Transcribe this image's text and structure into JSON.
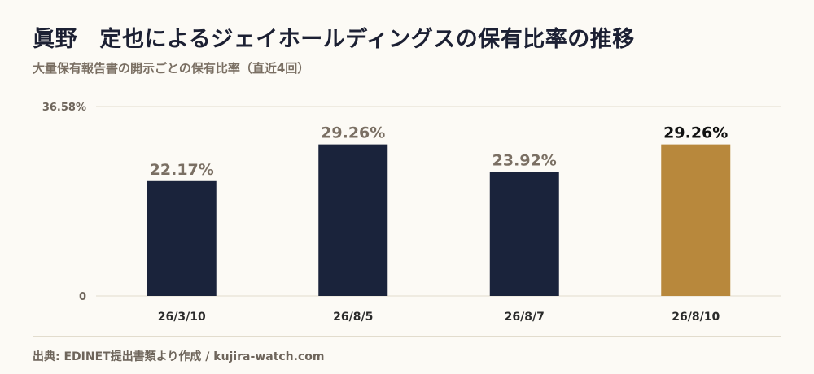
{
  "title": "眞野　定也によるジェイホールディングスの保有比率の推移",
  "subtitle": "大量保有報告書の開示ごとの保有比率（直近4回）",
  "footer": "出典: EDINET提出書類より作成 / kujira-watch.com",
  "colors": {
    "bar": "#1a233b",
    "highlight": "#b8883c",
    "value_label": "#7a6f63",
    "highlight_label": "#111111",
    "axis_text": "#6e655b",
    "grid": "#e2dccd"
  },
  "chart_data": {
    "type": "bar",
    "categories": [
      "26/3/10",
      "26/8/5",
      "26/8/7",
      "26/8/10"
    ],
    "values": [
      22.17,
      29.26,
      23.92,
      29.26
    ],
    "value_labels": [
      "22.17%",
      "29.26%",
      "23.92%",
      "29.26%"
    ],
    "highlight_index": 3,
    "ylim": [
      0,
      36.58
    ],
    "y_tick_labels": [
      "0",
      "36.58%"
    ],
    "title": "",
    "xlabel": "",
    "ylabel": ""
  }
}
